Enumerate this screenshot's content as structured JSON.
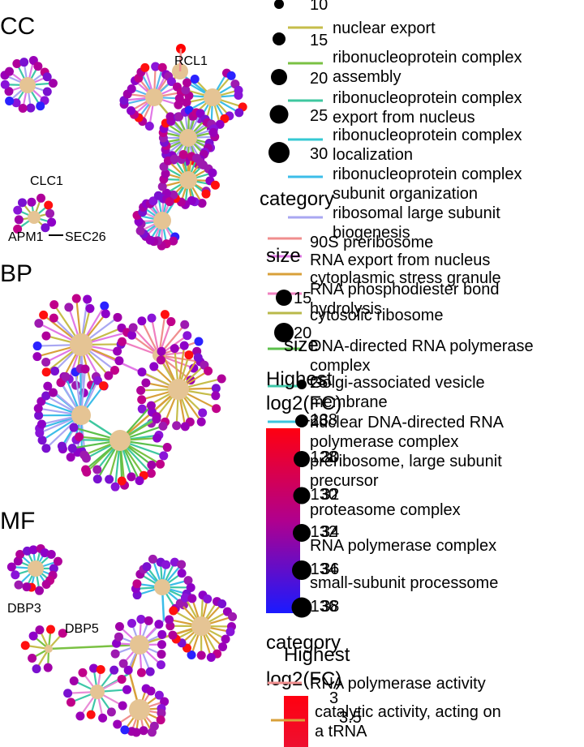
{
  "panels": [
    {
      "id": "cc",
      "title": "CC",
      "labels": [
        "RCL1",
        "CLC1",
        "APM1",
        "SEC26"
      ]
    },
    {
      "id": "bp",
      "title": "BP",
      "labels": []
    },
    {
      "id": "mf",
      "title": "MF",
      "labels": [
        "DBP3",
        "DBP5"
      ]
    }
  ],
  "colors": {
    "category_node": "#e5c494",
    "fc_high": "#ff0000",
    "fc_mid": "#8b008b",
    "fc_low": "#0000ff"
  },
  "legend_top": {
    "size_values": [
      "10",
      "15",
      "20",
      "25",
      "30"
    ],
    "category_title": "category",
    "categories": [
      {
        "label": "nuclear export",
        "color": "#c6bd4a"
      },
      {
        "label": "ribonucleoprotein complex assembly",
        "color": "#7ac143"
      },
      {
        "label": "ribonucleoprotein complex export from nucleus",
        "color": "#3ec79f"
      },
      {
        "label": "ribonucleoprotein complex localization",
        "color": "#36c9d3"
      },
      {
        "label": "ribonucleoprotein complex subunit organization",
        "color": "#3cbde8"
      },
      {
        "label": "ribosomal large subunit biogenesis",
        "color": "#a9a7f2"
      },
      {
        "label": "90S preribosome",
        "color": "#f08e8e"
      },
      {
        "label": "RNA export from nucleus",
        "color": "#e178e6"
      },
      {
        "label": "cytoplasmic stress granule",
        "color": "#d8a03a"
      },
      {
        "label": "RNA phosphodiester bond hydrolysis",
        "color": "#f080c0"
      },
      {
        "label": "cytosolic ribosome",
        "color": "#b9b94a"
      },
      {
        "label": "DNA-directed RNA polymerase complex",
        "color": "#5cc04c"
      },
      {
        "label": "Golgi-associated vesicle membrane",
        "color": "#3ec7a8"
      },
      {
        "label": "nuclear DNA-directed RNA polymerase complex",
        "color": "#3cc4dc"
      },
      {
        "label": "preribosome, large subunit precursor",
        "color": "#5ab8ee"
      },
      {
        "label": "proteasome complex",
        "color": "#a4a2f4"
      },
      {
        "label": "RNA polymerase complex",
        "color": "#e98bd6"
      },
      {
        "label": "small-subunit processome",
        "color": "#f07ec0"
      }
    ],
    "size_title_1": "size",
    "size_values_2": [
      "15",
      "20"
    ],
    "size_title_2": "size",
    "fc_title": "Highest log2(FC)",
    "fc_ticks": [
      "-128",
      "-130",
      "-132",
      "-134",
      "-136",
      "-138"
    ],
    "size_values_3": [
      "25",
      "28",
      "30",
      "32",
      "34",
      "36",
      "38"
    ]
  },
  "legend_mf": {
    "category_title": "category",
    "categories": [
      {
        "label": "RNA polymerase activity",
        "color": "#f08e8e"
      },
      {
        "label": "catalytic activity, acting on a tRNA",
        "color": "#d8a03a"
      }
    ],
    "fc_title": "Highest log2(FC)",
    "fc_ticks": [
      "3",
      "3.5"
    ]
  }
}
